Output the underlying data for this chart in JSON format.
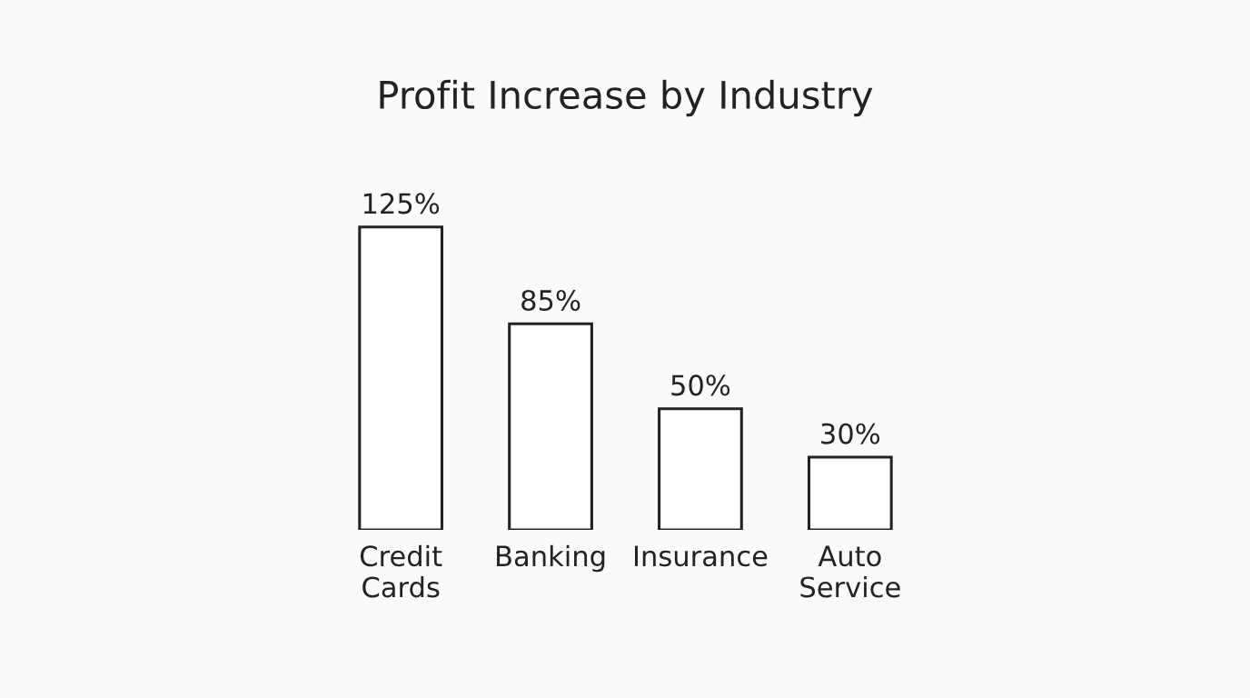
{
  "chart_data": {
    "type": "bar",
    "title": "Profit Increase by Industry",
    "categories": [
      "Credit Cards",
      "Banking",
      "Insurance",
      "Auto Service"
    ],
    "values": [
      125,
      85,
      50,
      30
    ],
    "value_labels": [
      "125%",
      "85%",
      "50%",
      "30%"
    ],
    "color": "#222222",
    "grid": false,
    "legend": false
  }
}
